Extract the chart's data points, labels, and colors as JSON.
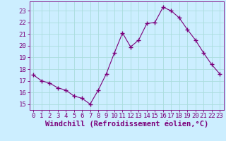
{
  "x": [
    0,
    1,
    2,
    3,
    4,
    5,
    6,
    7,
    8,
    9,
    10,
    11,
    12,
    13,
    14,
    15,
    16,
    17,
    18,
    19,
    20,
    21,
    22,
    23
  ],
  "y": [
    17.5,
    17.0,
    16.8,
    16.4,
    16.2,
    15.7,
    15.5,
    15.0,
    16.2,
    17.6,
    19.4,
    21.1,
    19.9,
    20.5,
    21.9,
    22.0,
    23.3,
    23.0,
    22.4,
    21.4,
    20.5,
    19.4,
    18.4,
    17.6
  ],
  "line_color": "#7B007B",
  "marker": "+",
  "marker_size": 4,
  "bg_color": "#cceeff",
  "grid_color": "#aadddd",
  "xlabel": "Windchill (Refroidissement éolien,°C)",
  "ylim": [
    14.5,
    23.8
  ],
  "xlim": [
    -0.5,
    23.5
  ],
  "yticks": [
    15,
    16,
    17,
    18,
    19,
    20,
    21,
    22,
    23
  ],
  "xticks": [
    0,
    1,
    2,
    3,
    4,
    5,
    6,
    7,
    8,
    9,
    10,
    11,
    12,
    13,
    14,
    15,
    16,
    17,
    18,
    19,
    20,
    21,
    22,
    23
  ],
  "tick_color": "#7B007B",
  "label_color": "#7B007B",
  "tick_fontsize": 6.5,
  "xlabel_fontsize": 7.5
}
